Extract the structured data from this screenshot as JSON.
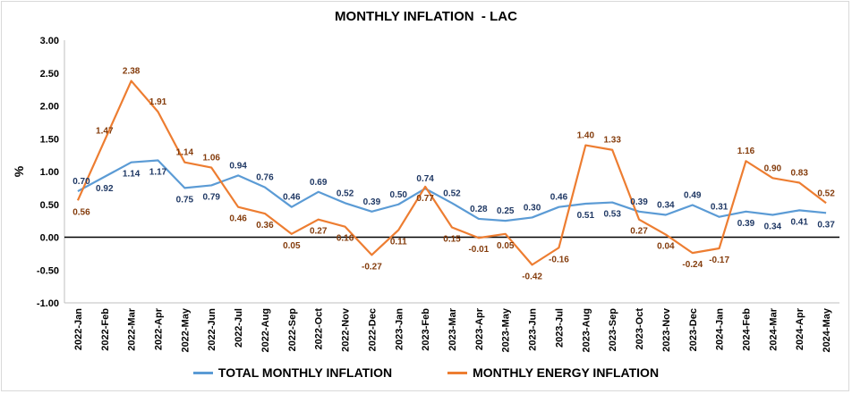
{
  "chart_data": {
    "type": "line",
    "title": "MONTHLY INFLATION  - LAC",
    "xlabel": "",
    "ylabel": "%",
    "ylim": [
      -1.0,
      3.0
    ],
    "yticks": [
      "3.00",
      "2.50",
      "2.00",
      "1.50",
      "1.00",
      "0.50",
      "0.00",
      "-0.50",
      "-1.00"
    ],
    "grid": false,
    "legend_position": "bottom",
    "categories": [
      "2022-Jan",
      "2022-Feb",
      "2022-Mar",
      "2022-Apr",
      "2022-May",
      "2022-Jun",
      "2022-Jul",
      "2022-Aug",
      "2022-Sep",
      "2022-Oct",
      "2022-Nov",
      "2022-Dec",
      "2023-Jan",
      "2023-Feb",
      "2023-Mar",
      "2023-Apr",
      "2023-May",
      "2023-Jun",
      "2023-Jul",
      "2023-Aug",
      "2023-Sep",
      "2023-Oct",
      "2023-Nov",
      "2023-Dec",
      "2024-Jan",
      "2024-Feb",
      "2024-Mar",
      "2024-Apr",
      "2024-May"
    ],
    "series": [
      {
        "name": "TOTAL MONTHLY INFLATION",
        "color": "#5b9bd5",
        "label_color": "#1f3864",
        "values": [
          0.7,
          0.92,
          1.14,
          1.17,
          0.75,
          0.79,
          0.94,
          0.76,
          0.46,
          0.69,
          0.52,
          0.39,
          0.5,
          0.74,
          0.52,
          0.28,
          0.25,
          0.3,
          0.46,
          0.51,
          0.53,
          0.39,
          0.34,
          0.49,
          0.31,
          0.39,
          0.34,
          0.41,
          0.37
        ],
        "labels": [
          "0.70",
          "0.92",
          "1.14",
          "1.17",
          "0.75",
          "0.79",
          "0.94",
          "0.76",
          "0.46",
          "0.69",
          "0.52",
          "0.39",
          "0.50",
          "0.74",
          "0.52",
          "0.28",
          "0.25",
          "0.30",
          "0.46",
          "0.51",
          "0.53",
          "0.39",
          "0.34",
          "0.49",
          "0.31",
          "0.39",
          "0.34",
          "0.41",
          "0.37"
        ]
      },
      {
        "name": "MONTHLY ENERGY INFLATION",
        "color": "#ed7d31",
        "label_color": "#843c0c",
        "values": [
          0.56,
          1.47,
          2.38,
          1.91,
          1.14,
          1.06,
          0.46,
          0.36,
          0.05,
          0.27,
          0.16,
          -0.27,
          0.11,
          0.77,
          0.15,
          -0.01,
          0.05,
          -0.42,
          -0.16,
          1.4,
          1.33,
          0.27,
          0.04,
          -0.24,
          -0.17,
          1.16,
          0.9,
          0.83,
          0.52
        ],
        "labels": [
          "0.56",
          "1.47",
          "2.38",
          "1.91",
          "1.14",
          "1.06",
          "0.46",
          "0.36",
          "0.05",
          "0.27",
          "0.16",
          "-0.27",
          "0.11",
          "0.77",
          "0.15",
          "-0.01",
          "0.05",
          "-0.42",
          "-0.16",
          "1.40",
          "1.33",
          "0.27",
          "0.04",
          "-0.24",
          "-0.17",
          "1.16",
          "0.90",
          "0.83",
          "0.52"
        ]
      }
    ]
  }
}
